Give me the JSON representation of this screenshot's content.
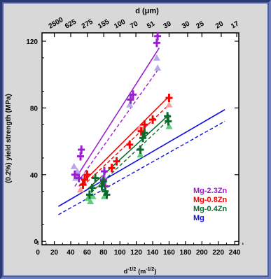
{
  "chart_data": {
    "type": "scatter",
    "xlabel": "d",
    "xlabel_sup": "-1/2",
    "xlabel_unit": "(m",
    "xlabel_unit_sup": "-1/2",
    "xlabel_close": ")",
    "ylabel": "(0.2%) yield strength (MPa)",
    "top_axis_label": "d (μm)",
    "xlim": [
      5,
      245
    ],
    "ylim": [
      -2,
      125
    ],
    "x_ticks": [
      0,
      20,
      40,
      60,
      80,
      100,
      120,
      140,
      160,
      180,
      200,
      220,
      240
    ],
    "y_ticks": [
      0,
      40,
      80,
      120
    ],
    "top_ticks": [
      {
        "label": "2500",
        "x": 20
      },
      {
        "label": "625",
        "x": 40
      },
      {
        "label": "275",
        "x": 60.3
      },
      {
        "label": "155",
        "x": 80.3
      },
      {
        "label": "100",
        "x": 100
      },
      {
        "label": "70",
        "x": 119.5
      },
      {
        "label": "51",
        "x": 140
      },
      {
        "label": "39",
        "x": 160
      },
      {
        "label": "30",
        "x": 182.6
      },
      {
        "label": "25",
        "x": 200
      },
      {
        "label": "20",
        "x": 223.6
      },
      {
        "label": "17",
        "x": 242.5
      }
    ],
    "legend_position": "bottom-right",
    "series": [
      {
        "name": "Mg-2.3Zn",
        "color": "#9b1fd1",
        "light": "#b8a8e8",
        "solid_line": [
          [
            45,
            37
          ],
          [
            148,
            116
          ]
        ],
        "dashed_line": [
          [
            45,
            33
          ],
          [
            148,
            104
          ]
        ],
        "points_plus": [
          [
            45,
            40
          ],
          [
            50,
            38
          ],
          [
            52,
            51
          ],
          [
            53,
            55
          ],
          [
            80,
            37
          ],
          [
            81,
            42
          ],
          [
            82,
            33
          ],
          [
            113,
            85
          ],
          [
            116,
            88
          ],
          [
            145,
            119
          ],
          [
            146,
            123
          ]
        ],
        "points_tri": [
          [
            44,
            45
          ],
          [
            46,
            38
          ],
          [
            48,
            42
          ],
          [
            80,
            39
          ],
          [
            112,
            82
          ],
          [
            145,
            110
          ],
          [
            146,
            104
          ]
        ]
      },
      {
        "name": "Mg-0.8Zn",
        "color": "#ff0000",
        "light": "#f5a0a0",
        "solid_line": [
          [
            50,
            33
          ],
          [
            160,
            87
          ]
        ],
        "dashed_line": [
          [
            50,
            31
          ],
          [
            160,
            82
          ]
        ],
        "points_plus": [
          [
            55,
            34
          ],
          [
            57,
            37
          ],
          [
            60,
            40
          ],
          [
            90,
            44
          ],
          [
            96,
            48
          ],
          [
            112,
            58
          ],
          [
            126,
            66
          ],
          [
            130,
            70
          ],
          [
            140,
            73
          ],
          [
            160,
            86
          ]
        ],
        "points_tri": [
          [
            52,
            31
          ],
          [
            56,
            35
          ],
          [
            58,
            38
          ],
          [
            124,
            68
          ],
          [
            128,
            67
          ],
          [
            160,
            82
          ]
        ]
      },
      {
        "name": "Mg-0.4Zn",
        "color": "#0b6b2b",
        "light": "#5fcc7a",
        "solid_line": [
          [
            60,
            31
          ],
          [
            160,
            76
          ]
        ],
        "dashed_line": [
          [
            60,
            27
          ],
          [
            160,
            73
          ]
        ],
        "points_plus": [
          [
            63,
            28
          ],
          [
            66,
            32
          ],
          [
            70,
            38
          ],
          [
            78,
            33
          ],
          [
            80,
            36
          ],
          [
            82,
            30
          ],
          [
            84,
            28
          ],
          [
            125,
            55
          ],
          [
            128,
            62
          ],
          [
            130,
            65
          ],
          [
            158,
            75
          ],
          [
            159,
            72
          ]
        ],
        "points_tri": [
          [
            61,
            26
          ],
          [
            64,
            24
          ],
          [
            67,
            27
          ],
          [
            81,
            27
          ],
          [
            125,
            52
          ],
          [
            160,
            69
          ]
        ]
      },
      {
        "name": "Mg",
        "color": "#1010e0",
        "solid_line": [
          [
            25,
            21
          ],
          [
            228,
            79
          ]
        ],
        "dashed_line": [
          [
            25,
            16
          ],
          [
            228,
            72
          ]
        ],
        "points_plus": [],
        "points_tri": []
      }
    ]
  }
}
